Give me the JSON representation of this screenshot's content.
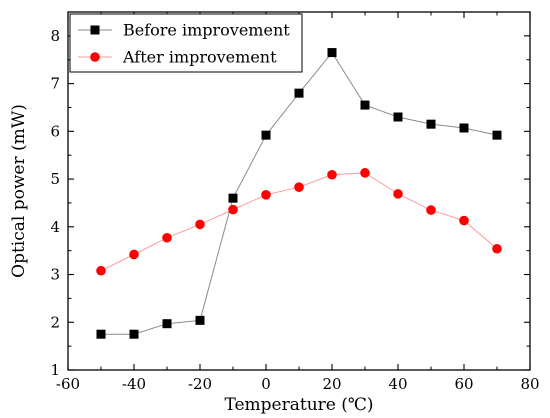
{
  "chart_data": {
    "type": "line",
    "title": "",
    "xlabel": "Temperature (℃)",
    "ylabel": "Optical power (mW)",
    "xlim": [
      -60,
      80
    ],
    "ylim": [
      1,
      8.5
    ],
    "xticks": [
      -60,
      -40,
      -20,
      0,
      20,
      40,
      60,
      80
    ],
    "yticks": [
      1,
      2,
      3,
      4,
      5,
      6,
      7,
      8
    ],
    "x": [
      -50,
      -40,
      -30,
      -20,
      -10,
      0,
      10,
      20,
      30,
      40,
      50,
      60,
      70
    ],
    "series": [
      {
        "name": "Before improvement",
        "marker": "square",
        "color": "#000000",
        "line_color": "#8a8a8a",
        "values": [
          1.75,
          1.75,
          1.97,
          2.04,
          4.6,
          5.92,
          6.8,
          7.65,
          6.55,
          6.3,
          6.15,
          6.07,
          5.92
        ]
      },
      {
        "name": "After improvement",
        "marker": "circle",
        "color": "#ff0000",
        "line_color": "#ff9a9a",
        "values": [
          3.08,
          3.42,
          3.77,
          4.05,
          4.36,
          4.67,
          4.83,
          5.09,
          5.13,
          4.69,
          4.35,
          4.13,
          3.54
        ]
      }
    ],
    "legend_position": "top-left",
    "grid": false
  }
}
